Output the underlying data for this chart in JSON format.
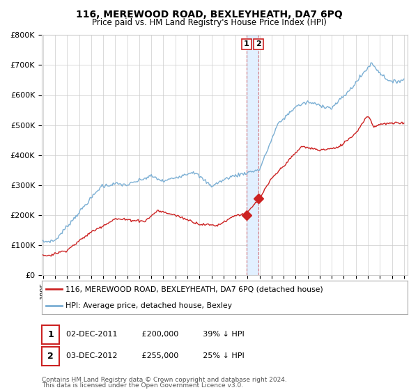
{
  "title_line1": "116, MEREWOOD ROAD, BEXLEYHEATH, DA7 6PQ",
  "title_line2": "Price paid vs. HM Land Registry's House Price Index (HPI)",
  "ylim": [
    0,
    800000
  ],
  "yticks": [
    0,
    100000,
    200000,
    300000,
    400000,
    500000,
    600000,
    700000,
    800000
  ],
  "ytick_labels": [
    "£0",
    "£100K",
    "£200K",
    "£300K",
    "£400K",
    "£500K",
    "£600K",
    "£700K",
    "£800K"
  ],
  "hpi_color": "#7bafd4",
  "price_color": "#cc2222",
  "shade_color": "#ddeeff",
  "grid_color": "#cccccc",
  "background_color": "#ffffff",
  "transaction1_date": "02-DEC-2011",
  "transaction1_price": 200000,
  "transaction1_label": "1",
  "transaction2_date": "03-DEC-2012",
  "transaction2_price": 255000,
  "transaction2_label": "2",
  "transaction1_hpi_pct": "39% ↓ HPI",
  "transaction2_hpi_pct": "25% ↓ HPI",
  "legend_line1": "116, MEREWOOD ROAD, BEXLEYHEATH, DA7 6PQ (detached house)",
  "legend_line2": "HPI: Average price, detached house, Bexley",
  "footer_line1": "Contains HM Land Registry data © Crown copyright and database right 2024.",
  "footer_line2": "This data is licensed under the Open Government Licence v3.0.",
  "x_start_year": 1995,
  "x_end_year": 2025
}
